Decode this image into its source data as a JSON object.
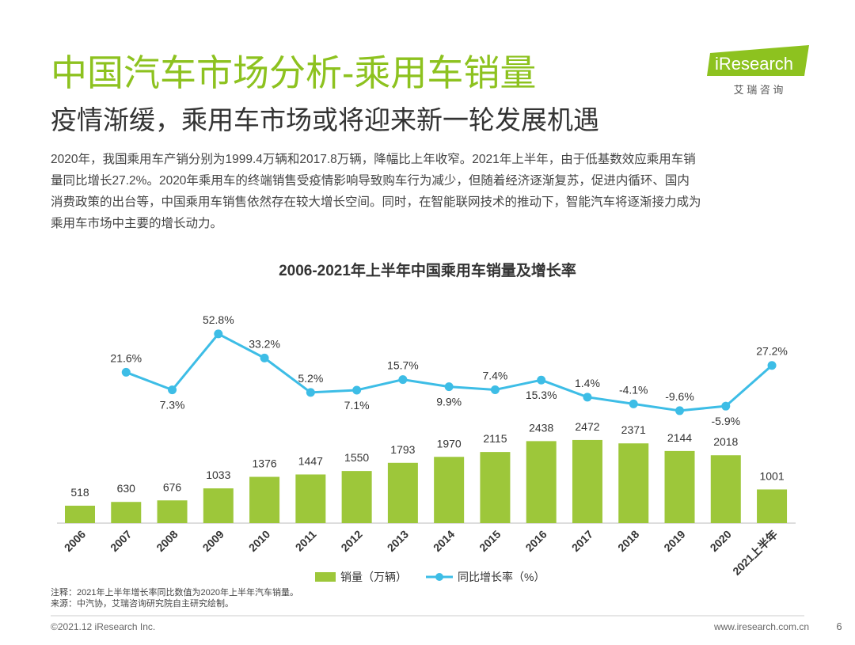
{
  "header": {
    "title": "中国汽车市场分析-乘用车销量",
    "subtitle": "疫情渐缓，乘用车市场或将迎来新一轮发展机遇",
    "logo": "iResearch",
    "logo_cn": "艾 瑞 咨 询"
  },
  "body": [
    "2020年，我国乘用车产销分别为1999.4万辆和2017.8万辆，降幅比上年收窄。2021年上半年，由于低基数效应乘用车销",
    "量同比增长27.2%。2020年乘用车的终端销售受疫情影响导致购车行为减少，但随着经济逐渐复苏，促进内循环、国内",
    "消费政策的出台等，中国乘用车销售依然存在较大增长空间。同时，在智能联网技术的推动下，智能汽车将逐渐接力成为",
    "乘用车市场中主要的增长动力。"
  ],
  "chart_data": {
    "type": "bar-line",
    "title": "2006-2021年上半年中国乘用车销量及增长率",
    "categories": [
      "2006",
      "2007",
      "2008",
      "2009",
      "2010",
      "2011",
      "2012",
      "2013",
      "2014",
      "2015",
      "2016",
      "2017",
      "2018",
      "2019",
      "2020",
      "2021上半年"
    ],
    "series": [
      {
        "name": "销量（万辆）",
        "type": "bar",
        "color": "#9dc73a",
        "values": [
          518,
          630,
          676,
          1033,
          1376,
          1447,
          1550,
          1793,
          1970,
          2115,
          2438,
          2472,
          2371,
          2144,
          2018,
          1001
        ]
      },
      {
        "name": "同比增长率（%）",
        "type": "line",
        "axis": "y2",
        "color": "#3dbde6",
        "values": [
          null,
          21.6,
          7.3,
          52.8,
          33.2,
          5.2,
          7.1,
          15.7,
          9.9,
          7.4,
          15.3,
          1.4,
          -4.1,
          -9.6,
          -5.9,
          27.2
        ],
        "value_labels": [
          null,
          "21.6%",
          "7.3%",
          "52.8%",
          "33.2%",
          "5.2%",
          "7.1%",
          "15.7%",
          "9.9%",
          "7.4%",
          "15.3%",
          "1.4%",
          "-4.1%",
          "-9.6%",
          "-5.9%",
          "27.2%"
        ]
      }
    ],
    "legend": "bottom"
  },
  "notes": [
    "注释：2021年上半年增长率同比数值为2020年上半年汽车销量。",
    "来源：中汽协，艾瑞咨询研究院自主研究绘制。"
  ],
  "footer": {
    "copyright": "©2021.12 iResearch Inc.",
    "website": "www.iresearch.com.cn",
    "page": "6"
  }
}
